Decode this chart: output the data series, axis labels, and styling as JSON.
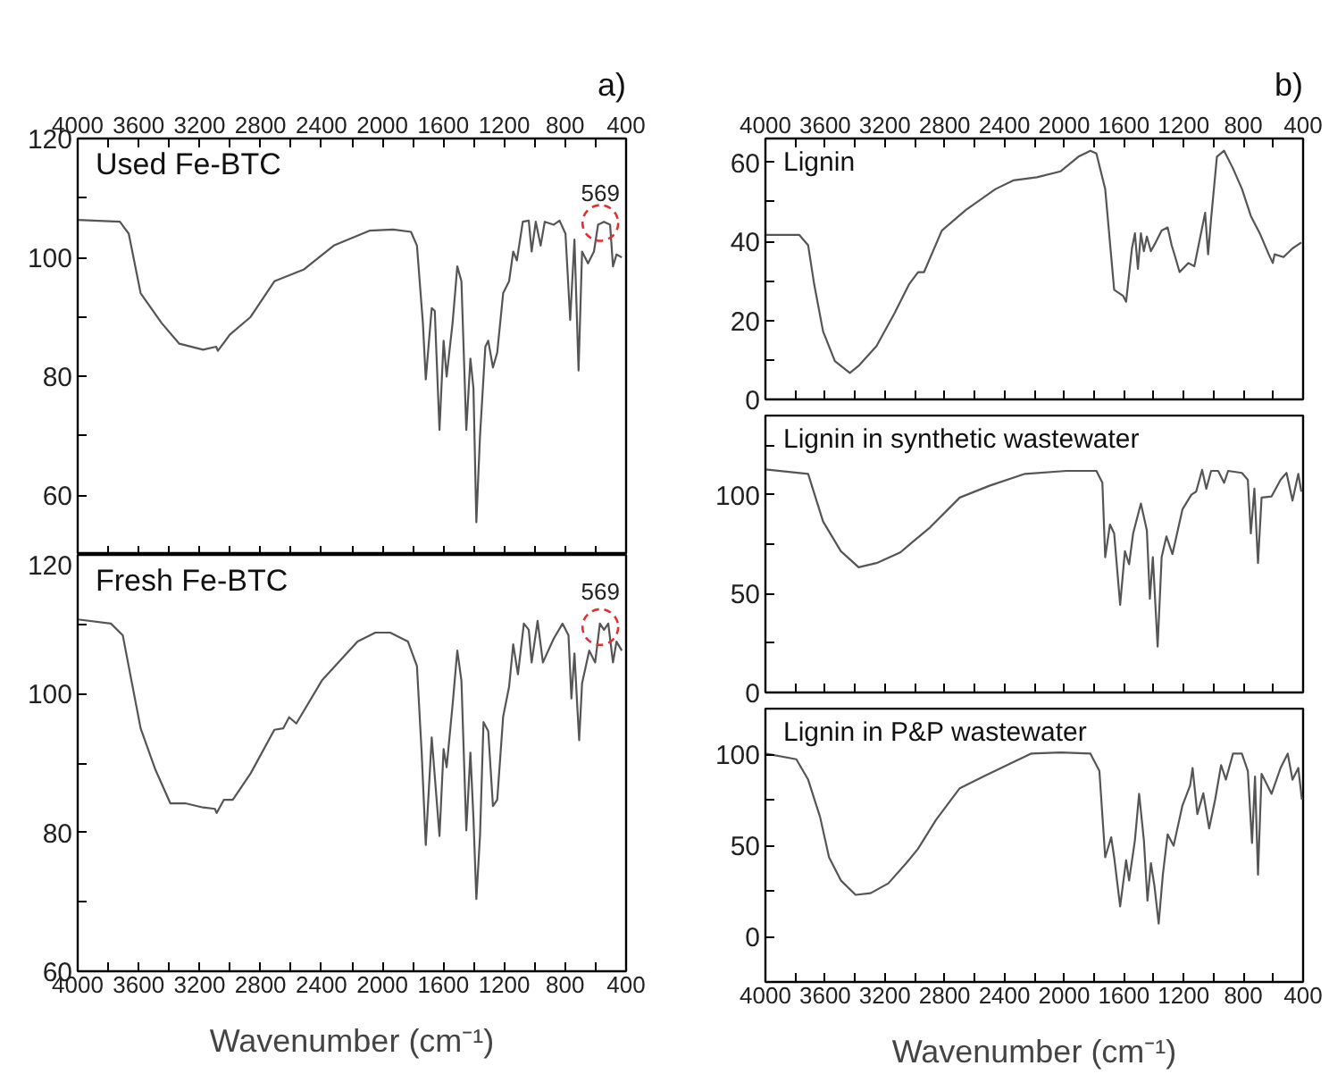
{
  "chart_data": [
    {
      "type": "line",
      "title": "Used Fe-BTC",
      "annotations": [
        "a)",
        {
          "text": "569",
          "x": 569,
          "y": 109.5
        }
      ],
      "grid": false,
      "xlim": [
        4000,
        400
      ],
      "xticks": [
        4000,
        {
          "value": 3800,
          "label": null
        },
        3600,
        {
          "value": 3400,
          "label": null
        },
        3200,
        {
          "value": 3000,
          "label": null
        },
        2800,
        {
          "value": 2600,
          "label": null
        },
        2400,
        {
          "value": 2200,
          "label": null
        },
        2000,
        {
          "value": 1800,
          "label": null
        },
        1600,
        {
          "value": 1400,
          "label": null
        },
        1200,
        {
          "value": 1000,
          "label": null
        },
        800,
        {
          "value": 600,
          "label": null
        },
        400
      ],
      "ylim": [
        50,
        120
      ],
      "yticks": [
        60,
        {
          "value": 70,
          "label": null
        },
        80,
        {
          "value": 90,
          "label": null
        },
        100,
        {
          "value": 110,
          "label": null
        },
        120
      ],
      "series": [
        {
          "color": "#555555",
          "x": [
            4000,
            3723,
            3665,
            3587,
            3450,
            3333,
            3177,
            3091,
            3080,
            3002,
            2865,
            2709,
            2514,
            2319,
            2085,
            1929,
            1812,
            1773,
            1734,
            1715,
            1676,
            1656,
            1625,
            1598,
            1578,
            1539,
            1508,
            1481,
            1449,
            1422,
            1402,
            1383,
            1359,
            1324,
            1305,
            1274,
            1246,
            1207,
            1168,
            1141,
            1117,
            1078,
            1039,
            1020,
            993,
            961,
            934,
            876,
            837,
            798,
            767,
            739,
            712,
            689,
            650,
            611,
            584,
            545,
            505,
            486,
            463,
            428
          ],
          "values": [
            106.3,
            106,
            104,
            94,
            89,
            85.5,
            84.5,
            85,
            84.3,
            87,
            90,
            96,
            98,
            102,
            104.5,
            104.7,
            104.3,
            102,
            89,
            79.5,
            91.5,
            91,
            71,
            86,
            80,
            89,
            98.5,
            96,
            71,
            83,
            78,
            55.5,
            70,
            85,
            86,
            81.5,
            84,
            94,
            96,
            101,
            99.5,
            106,
            106.2,
            101,
            106,
            102,
            106,
            105.5,
            106.2,
            104,
            89.5,
            103,
            81,
            101,
            99,
            101,
            105.5,
            106,
            105.5,
            98.5,
            100.5,
            100
          ]
        },
        {
          "type": "scatter",
          "marker": "circle",
          "line_style": "dashed",
          "color": "#e03030",
          "x": [
            569
          ],
          "values": [
            105.8
          ]
        }
      ]
    },
    {
      "type": "line",
      "title": "Fresh Fe-BTC",
      "xlabel": "Wavenumber (cm⁻¹)",
      "annotations": [
        {
          "text": "569",
          "x": 569,
          "y": 113.5
        }
      ],
      "grid": false,
      "xlim": [
        4000,
        400
      ],
      "xticks": [
        4000,
        {
          "value": 3800,
          "label": null
        },
        3600,
        {
          "value": 3400,
          "label": null
        },
        3200,
        {
          "value": 3000,
          "label": null
        },
        2800,
        {
          "value": 2600,
          "label": null
        },
        2400,
        {
          "value": 2200,
          "label": null
        },
        2000,
        {
          "value": 1800,
          "label": null
        },
        1600,
        {
          "value": 1400,
          "label": null
        },
        1200,
        {
          "value": 1000,
          "label": null
        },
        800,
        {
          "value": 600,
          "label": null
        },
        400
      ],
      "ylim": [
        60,
        120
      ],
      "yticks": [
        60,
        {
          "value": 70,
          "label": null
        },
        80,
        {
          "value": 90,
          "label": null
        },
        100,
        {
          "value": 110,
          "label": null
        },
        120
      ],
      "series": [
        {
          "color": "#555555",
          "x": [
            4000,
            3782,
            3704,
            3587,
            3489,
            3392,
            3294,
            3177,
            3099,
            3088,
            3041,
            2982,
            2865,
            2709,
            2651,
            2612,
            2565,
            2397,
            2163,
            2046,
            1949,
            1832,
            1773,
            1742,
            1715,
            1676,
            1625,
            1598,
            1578,
            1539,
            1508,
            1481,
            1449,
            1422,
            1402,
            1383,
            1359,
            1336,
            1305,
            1274,
            1246,
            1207,
            1168,
            1141,
            1110,
            1071,
            1039,
            1020,
            981,
            946,
            876,
            817,
            778,
            759,
            739,
            720,
            708,
            689,
            642,
            603,
            572,
            545,
            517,
            486,
            463,
            428
          ],
          "values": [
            110.7,
            110.1,
            108.4,
            95,
            89,
            84.2,
            84.2,
            83.6,
            83.4,
            82.8,
            84.7,
            84.7,
            88.5,
            94.8,
            95,
            96.6,
            95.7,
            101.9,
            107.5,
            108.8,
            108.8,
            107.5,
            104,
            91.5,
            78.2,
            93.7,
            79.5,
            92,
            89.4,
            98.4,
            106.2,
            101.9,
            80.3,
            91.5,
            82,
            70.4,
            79.5,
            95.9,
            94.6,
            83.8,
            84.7,
            96.7,
            101,
            107.1,
            102.8,
            110.1,
            109.2,
            104.5,
            110.5,
            104.5,
            107.9,
            110.1,
            108.4,
            99.3,
            105.8,
            98,
            93.3,
            101.5,
            106.2,
            104.5,
            110.1,
            109.2,
            110.1,
            104.5,
            107.5,
            106.2
          ]
        },
        {
          "type": "scatter",
          "marker": "circle",
          "line_style": "dashed",
          "color": "#e03030",
          "x": [
            569
          ],
          "values": [
            109.6
          ]
        }
      ]
    },
    {
      "type": "line",
      "title": "Lignin",
      "annotations": [
        "b)"
      ],
      "grid": false,
      "xlim": [
        4000,
        400
      ],
      "xticks": [
        4000,
        {
          "value": 3800,
          "label": null
        },
        3600,
        {
          "value": 3400,
          "label": null
        },
        3200,
        {
          "value": 3000,
          "label": null
        },
        2800,
        {
          "value": 2600,
          "label": null
        },
        2400,
        {
          "value": 2200,
          "label": null
        },
        2000,
        {
          "value": 1800,
          "label": null
        },
        1600,
        {
          "value": 1400,
          "label": null
        },
        1200,
        {
          "value": 1000,
          "label": null
        },
        800,
        {
          "value": 600,
          "label": null
        },
        400
      ],
      "ylim": [
        0,
        66
      ],
      "yticks": [
        0,
        {
          "value": 10,
          "label": null
        },
        20,
        {
          "value": 30,
          "label": null
        },
        40,
        {
          "value": 50,
          "label": null
        },
        60
      ],
      "series": [
        {
          "color": "#555555",
          "x": [
            4000,
            3773,
            3714,
            3674,
            3614,
            3535,
            3435,
            3376,
            3256,
            3137,
            3037,
            2978,
            2938,
            2819,
            2659,
            2460,
            2341,
            2182,
            2023,
            1904,
            1824,
            1784,
            1725,
            1665,
            1605,
            1585,
            1546,
            1526,
            1506,
            1486,
            1466,
            1446,
            1419,
            1387,
            1347,
            1307,
            1280,
            1256,
            1227,
            1168,
            1128,
            1088,
            1056,
            1036,
            1016,
            977,
            929,
            869,
            809,
            750,
            690,
            630,
            603,
            591,
            531,
            471,
            412
          ],
          "values": [
            41.6,
            41.6,
            39,
            29.2,
            17.2,
            9.7,
            6.7,
            8.5,
            13.5,
            21.7,
            29.2,
            32.2,
            32.2,
            42.7,
            47.9,
            53.2,
            55.4,
            56.2,
            57.7,
            61.4,
            62.9,
            62.2,
            53.2,
            27.7,
            26.2,
            24.7,
            38.2,
            42,
            33,
            42,
            37.5,
            41.2,
            37.5,
            39.7,
            42.7,
            43.5,
            39,
            36,
            32.2,
            34.5,
            33.7,
            41.2,
            47.2,
            36.7,
            45.7,
            61.4,
            62.9,
            58.4,
            53.2,
            46.4,
            42,
            36.7,
            34.5,
            36.7,
            36,
            38.2,
            39.7
          ]
        }
      ]
    },
    {
      "type": "line",
      "title": "Lignin in synthetic wastewater",
      "grid": false,
      "tick_labels": "y",
      "xlim": [
        4000,
        400
      ],
      "xticks": [
        4000,
        {
          "value": 3800,
          "label": null
        },
        3600,
        {
          "value": 3400,
          "label": null
        },
        3200,
        {
          "value": 3000,
          "label": null
        },
        2800,
        {
          "value": 2600,
          "label": null
        },
        2400,
        {
          "value": 2200,
          "label": null
        },
        2000,
        {
          "value": 1800,
          "label": null
        },
        1600,
        {
          "value": 1400,
          "label": null
        },
        1200,
        {
          "value": 1000,
          "label": null
        },
        800,
        {
          "value": 600,
          "label": null
        },
        400
      ],
      "ylim": [
        0,
        140
      ],
      "yticks": [
        0,
        {
          "value": 25,
          "label": null
        },
        50,
        {
          "value": 75,
          "label": null
        },
        100,
        {
          "value": 125,
          "label": null
        }
      ],
      "series": [
        {
          "color": "#555555",
          "x": [
            4000,
            3714,
            3614,
            3495,
            3376,
            3256,
            3097,
            3017,
            2898,
            2699,
            2500,
            2262,
            1983,
            1784,
            1744,
            1725,
            1693,
            1665,
            1625,
            1593,
            1565,
            1538,
            1486,
            1446,
            1426,
            1406,
            1374,
            1347,
            1315,
            1275,
            1208,
            1148,
            1116,
            1076,
            1048,
            1016,
            969,
            929,
            902,
            810,
            770,
            750,
            726,
            702,
            678,
            611,
            551,
            511,
            471,
            432,
            412
          ],
          "values": [
            112.7,
            110.5,
            86.4,
            71.4,
            63.3,
            65.4,
            70.8,
            75.9,
            83.4,
            98.5,
            104.5,
            110.5,
            112,
            112,
            106,
            68.4,
            84.9,
            80.4,
            44.3,
            71.4,
            64.8,
            80.4,
            95.5,
            81.9,
            47.3,
            68.4,
            23.2,
            68.4,
            78.9,
            69.9,
            92.5,
            100,
            101.5,
            112.5,
            103,
            112,
            112,
            106,
            112,
            111,
            107.5,
            80.4,
            103,
            65.4,
            98.5,
            99.1,
            107.5,
            111,
            97,
            110.5,
            101.5
          ]
        }
      ]
    },
    {
      "type": "line",
      "title": "Lignin in P&P wastewater",
      "xlabel": "Wavenumber (cm⁻¹)",
      "grid": false,
      "xlim": [
        4000,
        400
      ],
      "xticks": [
        4000,
        {
          "value": 3800,
          "label": null
        },
        3600,
        {
          "value": 3400,
          "label": null
        },
        3200,
        {
          "value": 3000,
          "label": null
        },
        2800,
        {
          "value": 2600,
          "label": null
        },
        2400,
        {
          "value": 2200,
          "label": null
        },
        2000,
        {
          "value": 1800,
          "label": null
        },
        1600,
        {
          "value": 1400,
          "label": null
        },
        1200,
        {
          "value": 1000,
          "label": null
        },
        800,
        {
          "value": 600,
          "label": null
        },
        400
      ],
      "ylim": [
        -25,
        125
      ],
      "yticks": [
        0,
        {
          "value": 25,
          "label": null
        },
        50,
        {
          "value": 75,
          "label": null
        },
        100
      ],
      "series": [
        {
          "color": "#555555",
          "x": [
            4000,
            3793,
            3714,
            3634,
            3574,
            3495,
            3396,
            3296,
            3177,
            3057,
            2978,
            2858,
            2699,
            2540,
            2341,
            2222,
            2023,
            1824,
            1764,
            1725,
            1685,
            1665,
            1625,
            1585,
            1565,
            1526,
            1498,
            1466,
            1442,
            1419,
            1395,
            1367,
            1339,
            1307,
            1267,
            1208,
            1156,
            1140,
            1108,
            1068,
            1029,
            989,
            949,
            917,
            869,
            810,
            770,
            742,
            722,
            702,
            678,
            611,
            551,
            503,
            471,
            432,
            408
          ],
          "values": [
            100.3,
            97.2,
            86,
            65.5,
            43.4,
            30.7,
            22.8,
            23.7,
            29.1,
            40.2,
            48.1,
            63.9,
            81.3,
            87.7,
            95.6,
            100.3,
            100.9,
            100.3,
            90.8,
            43.4,
            54.4,
            43.4,
            16.5,
            41.8,
            30.7,
            52.8,
            78.2,
            52.8,
            19.6,
            40.2,
            27.5,
            7,
            33.9,
            56,
            49.7,
            71.8,
            82.9,
            92.4,
            67.1,
            78.5,
            59.2,
            75,
            94,
            86,
            100.3,
            100.3,
            90.8,
            51.3,
            87.7,
            33.9,
            89.2,
            78.2,
            92.4,
            100.3,
            86,
            92.4,
            75
          ]
        }
      ]
    }
  ]
}
